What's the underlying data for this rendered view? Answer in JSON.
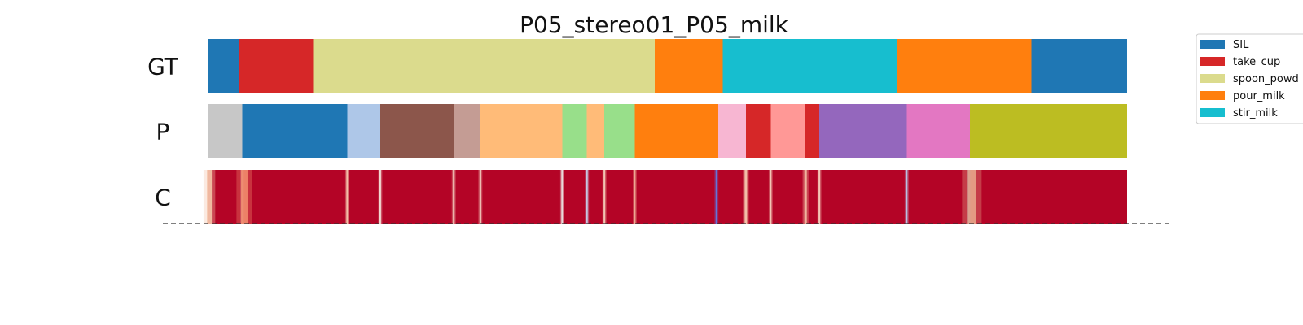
{
  "chart_data": {
    "type": "segmentation-bars",
    "title": "P05_stereo01_P05_milk",
    "x_range": [
      0,
      1000
    ],
    "rows": [
      {
        "label": "GT",
        "segments": [
          {
            "start": 0,
            "end": 33,
            "label": "SIL",
            "color": "#1f77b4"
          },
          {
            "start": 33,
            "end": 114,
            "label": "take_cup",
            "color": "#d62728"
          },
          {
            "start": 114,
            "end": 486,
            "label": "spoon_powder",
            "color": "#dbdb8d"
          },
          {
            "start": 486,
            "end": 560,
            "label": "pour_milk",
            "color": "#ff7f0e"
          },
          {
            "start": 560,
            "end": 750,
            "label": "stir_milk",
            "color": "#17becf"
          },
          {
            "start": 750,
            "end": 896,
            "label": "pour_milk",
            "color": "#ff7f0e"
          },
          {
            "start": 896,
            "end": 1000,
            "label": "SIL",
            "color": "#1f77b4"
          }
        ]
      },
      {
        "label": "P",
        "segments": [
          {
            "start": 0,
            "end": 37,
            "color": "#c7c7c7"
          },
          {
            "start": 37,
            "end": 151,
            "color": "#1f77b4"
          },
          {
            "start": 151,
            "end": 187,
            "color": "#aec7e8"
          },
          {
            "start": 187,
            "end": 267,
            "color": "#8c564b"
          },
          {
            "start": 267,
            "end": 296,
            "color": "#c49c94"
          },
          {
            "start": 296,
            "end": 385,
            "color": "#ffbb78"
          },
          {
            "start": 385,
            "end": 412,
            "color": "#98df8a"
          },
          {
            "start": 412,
            "end": 431,
            "color": "#ffbb78"
          },
          {
            "start": 431,
            "end": 464,
            "color": "#98df8a"
          },
          {
            "start": 464,
            "end": 555,
            "color": "#ff7f0e"
          },
          {
            "start": 555,
            "end": 585,
            "color": "#f7b6d2"
          },
          {
            "start": 585,
            "end": 612,
            "color": "#d62728"
          },
          {
            "start": 612,
            "end": 650,
            "color": "#ff9896"
          },
          {
            "start": 650,
            "end": 665,
            "color": "#d62728"
          },
          {
            "start": 665,
            "end": 760,
            "color": "#9467bd"
          },
          {
            "start": 760,
            "end": 829,
            "color": "#e377c2"
          },
          {
            "start": 829,
            "end": 1000,
            "color": "#bcbd22"
          }
        ]
      },
      {
        "label": "C",
        "base_color": "#b40426",
        "confidence_dips": [
          {
            "position": 1,
            "width": 6,
            "color": "#f4c4a9"
          },
          {
            "position": 37,
            "width": 2,
            "color": "#c8d4ee"
          },
          {
            "position": 39,
            "width": 8,
            "color": "#f08a6c"
          },
          {
            "position": 151,
            "width": 2,
            "color": "#f6cbb0"
          },
          {
            "position": 187,
            "width": 2,
            "color": "#f5e6da"
          },
          {
            "position": 267,
            "width": 2,
            "color": "#f6d5c2"
          },
          {
            "position": 296,
            "width": 2,
            "color": "#f5d8c6"
          },
          {
            "position": 385,
            "width": 2,
            "color": "#ece9e6"
          },
          {
            "position": 412,
            "width": 2,
            "color": "#c8d4ee"
          },
          {
            "position": 431,
            "width": 2,
            "color": "#f5d2bd"
          },
          {
            "position": 464,
            "width": 2,
            "color": "#f1b399"
          },
          {
            "position": 553,
            "width": 2,
            "color": "#5d7ce6"
          },
          {
            "position": 585,
            "width": 3,
            "color": "#f6cbb0"
          },
          {
            "position": 612,
            "width": 2,
            "color": "#f7d2bd"
          },
          {
            "position": 650,
            "width": 3,
            "color": "#f3bfa5"
          },
          {
            "position": 665,
            "width": 2,
            "color": "#f7d4bf"
          },
          {
            "position": 760,
            "width": 2,
            "color": "#b9cdef"
          },
          {
            "position": 828,
            "width": 2,
            "color": "#4b6fd8"
          },
          {
            "position": 831,
            "width": 10,
            "color": "#e6a58a"
          }
        ]
      }
    ],
    "legend": {
      "placement": "outside-right",
      "entries": [
        {
          "label": "SIL",
          "color": "#1f77b4"
        },
        {
          "label": "take_cup",
          "color": "#d62728"
        },
        {
          "label": "spoon_powd",
          "color": "#dbdb8d"
        },
        {
          "label": "pour_milk",
          "color": "#ff7f0e"
        },
        {
          "label": "stir_milk",
          "color": "#17becf"
        }
      ]
    },
    "dashed_baseline": true,
    "grid": false
  }
}
